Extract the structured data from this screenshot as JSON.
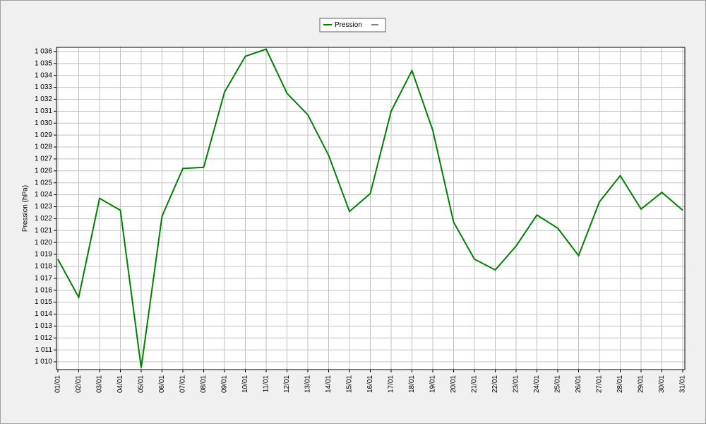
{
  "chart_data": {
    "type": "line",
    "y_label": "Pression (hPa)",
    "categories": [
      "01/01",
      "02/01",
      "03/01",
      "04/01",
      "05/01",
      "06/01",
      "07/01",
      "08/01",
      "09/01",
      "10/01",
      "11/01",
      "12/01",
      "13/01",
      "14/01",
      "15/01",
      "16/01",
      "17/01",
      "18/01",
      "19/01",
      "20/01",
      "21/01",
      "22/01",
      "23/01",
      "24/01",
      "25/01",
      "26/01",
      "27/01",
      "28/01",
      "29/01",
      "30/01",
      "31/01"
    ],
    "series": [
      {
        "name": "Pression",
        "color": "#008000",
        "values": [
          1018.6,
          1015.4,
          1023.7,
          1022.7,
          1009.5,
          1022.2,
          1026.2,
          1026.3,
          1032.6,
          1035.6,
          1036.2,
          1032.5,
          1030.7,
          1027.3,
          1022.6,
          1024.1,
          1031.0,
          1034.4,
          1029.4,
          1021.7,
          1018.6,
          1017.7,
          1019.7,
          1022.3,
          1021.2,
          1018.9,
          1023.4,
          1025.6,
          1022.8,
          1024.2,
          1022.7
        ]
      }
    ],
    "ylim": [
      1009.35,
      1036.35
    ],
    "yticks": [
      {
        "value": 1010,
        "label": "1 010"
      },
      {
        "value": 1011,
        "label": "1 011"
      },
      {
        "value": 1012,
        "label": "1 012"
      },
      {
        "value": 1013,
        "label": "1 013"
      },
      {
        "value": 1014,
        "label": "1 014"
      },
      {
        "value": 1015,
        "label": "1 015"
      },
      {
        "value": 1016,
        "label": "1 016"
      },
      {
        "value": 1017,
        "label": "1 017"
      },
      {
        "value": 1018,
        "label": "1 018"
      },
      {
        "value": 1019,
        "label": "1 019"
      },
      {
        "value": 1020,
        "label": "1 020"
      },
      {
        "value": 1021,
        "label": "1 021"
      },
      {
        "value": 1022,
        "label": "1 022"
      },
      {
        "value": 1023,
        "label": "1 023"
      },
      {
        "value": 1024,
        "label": "1 024"
      },
      {
        "value": 1025,
        "label": "1 025"
      },
      {
        "value": 1026,
        "label": "1 026"
      },
      {
        "value": 1027,
        "label": "1 027"
      },
      {
        "value": 1028,
        "label": "1 028"
      },
      {
        "value": 1029,
        "label": "1 029"
      },
      {
        "value": 1030,
        "label": "1 030"
      },
      {
        "value": 1031,
        "label": "1 031"
      },
      {
        "value": 1032,
        "label": "1 032"
      },
      {
        "value": 1033,
        "label": "1 033"
      },
      {
        "value": 1034,
        "label": "1 034"
      },
      {
        "value": 1035,
        "label": "1 035"
      },
      {
        "value": 1036,
        "label": "1 036"
      }
    ],
    "grid": true
  }
}
